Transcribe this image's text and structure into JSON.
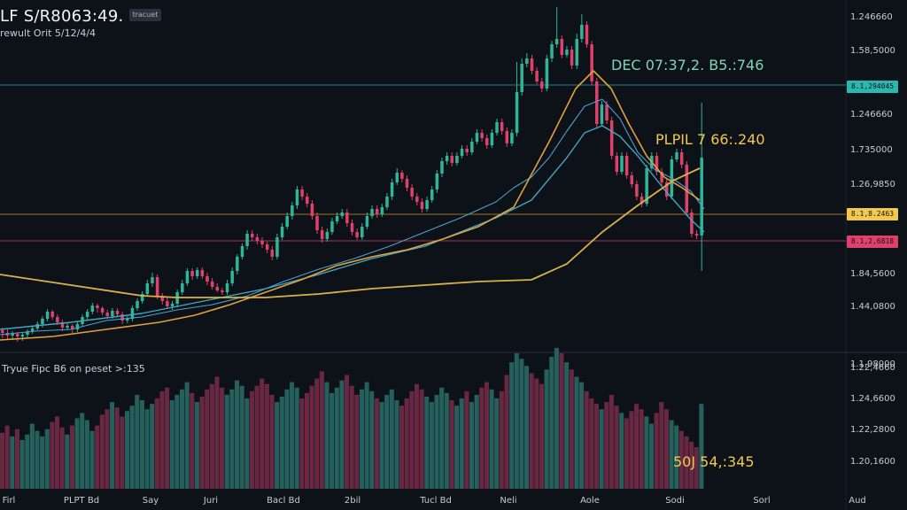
{
  "header": {
    "title": "LF S/R8063:49.",
    "subtitle": "rewult Orit 5/12/4/4",
    "badge": "tracuet"
  },
  "colors": {
    "background": "#0d1118",
    "bull": "#2fb59a",
    "bear": "#e0416b",
    "ma_fast": "#3fa7c4",
    "ma_mid": "#e0a23c",
    "ma_slow": "#d9b24a",
    "line_teal": "#29a59e",
    "line_orange": "#c58d2c",
    "line_pink": "#ca3b66"
  },
  "chart_data": {
    "type": "line",
    "title": "LF S/R8063:49.",
    "subtitle": "rewult Orit 5/12/4/4",
    "xlabel": "",
    "ylabel": "",
    "grid": false,
    "x_tick_labels": [
      "Firl",
      "PLPT Bd",
      "Say",
      "Juri",
      "Bacl Bd",
      "2bil",
      "Tucl Bd",
      "Neli",
      "Aole",
      "Sodi",
      "Sorl",
      "Aud"
    ],
    "price_axis_labels": [
      "1.246660",
      "1.58,5000",
      "1.246660",
      "1.735000",
      "1.26,9850",
      "1.84,5600",
      "1.44,0800",
      "1.1,98000"
    ],
    "volume_axis_labels": [
      "1.22,4660",
      "1.24,6600",
      "1.22,2800",
      "1.20,1600"
    ],
    "price_tags": [
      {
        "label": "8.1,294045",
        "color": "#2ab7b0"
      },
      {
        "label": "8.1,8.2463",
        "color": "#f2c94c"
      },
      {
        "label": "8.1,2,6818",
        "color": "#e0416b"
      }
    ],
    "annotations": [
      {
        "text": "DEC 07:37,2. B5.:746",
        "color": "#7fd6b5"
      },
      {
        "text": "PLPIL 7 66:.240",
        "color": "#f2c94c"
      },
      {
        "text": "50J 54,:345",
        "color": "#f2c94c"
      }
    ],
    "volume_label": "Tryue Fipc B6 on peset >:135",
    "candles": [
      [
        373,
        376,
        370,
        382
      ],
      [
        376,
        379,
        372,
        383
      ],
      [
        379,
        377,
        374,
        384
      ],
      [
        377,
        380,
        375,
        386
      ],
      [
        380,
        378,
        376,
        385
      ],
      [
        378,
        374,
        372,
        381
      ],
      [
        374,
        371,
        369,
        377
      ],
      [
        371,
        366,
        363,
        373
      ],
      [
        366,
        360,
        357,
        370
      ],
      [
        360,
        352,
        349,
        363
      ],
      [
        352,
        358,
        350,
        361
      ],
      [
        358,
        364,
        355,
        367
      ],
      [
        364,
        370,
        361,
        374
      ],
      [
        370,
        368,
        365,
        373
      ],
      [
        368,
        372,
        366,
        376
      ],
      [
        372,
        366,
        363,
        375
      ],
      [
        366,
        358,
        355,
        369
      ],
      [
        358,
        352,
        349,
        361
      ],
      [
        352,
        345,
        342,
        355
      ],
      [
        345,
        348,
        343,
        353
      ],
      [
        348,
        353,
        346,
        356
      ],
      [
        353,
        357,
        350,
        360
      ],
      [
        357,
        351,
        348,
        360
      ],
      [
        351,
        355,
        348,
        358
      ],
      [
        355,
        362,
        352,
        366
      ],
      [
        362,
        360,
        357,
        365
      ],
      [
        360,
        348,
        345,
        363
      ],
      [
        348,
        340,
        337,
        351
      ],
      [
        340,
        332,
        329,
        343
      ],
      [
        332,
        320,
        316,
        335
      ],
      [
        320,
        313,
        308,
        324
      ],
      [
        313,
        334,
        310,
        338
      ],
      [
        334,
        340,
        331,
        344
      ],
      [
        340,
        346,
        336,
        349
      ],
      [
        346,
        343,
        340,
        350
      ],
      [
        343,
        330,
        327,
        347
      ],
      [
        330,
        320,
        316,
        333
      ],
      [
        320,
        306,
        303,
        323
      ],
      [
        306,
        312,
        303,
        316
      ],
      [
        312,
        305,
        302,
        315
      ],
      [
        305,
        312,
        302,
        315
      ],
      [
        312,
        318,
        308,
        322
      ],
      [
        318,
        324,
        314,
        327
      ],
      [
        324,
        328,
        320,
        330
      ],
      [
        328,
        330,
        325,
        333
      ],
      [
        330,
        320,
        316,
        333
      ],
      [
        320,
        306,
        302,
        323
      ],
      [
        306,
        290,
        287,
        310
      ],
      [
        290,
        278,
        275,
        293
      ],
      [
        278,
        264,
        260,
        282
      ],
      [
        264,
        268,
        260,
        272
      ],
      [
        268,
        272,
        264,
        276
      ],
      [
        272,
        276,
        268,
        280
      ],
      [
        276,
        282,
        273,
        286
      ],
      [
        282,
        290,
        278,
        294
      ],
      [
        290,
        268,
        264,
        293
      ],
      [
        268,
        256,
        252,
        271
      ],
      [
        256,
        244,
        240,
        259
      ],
      [
        244,
        232,
        228,
        248
      ],
      [
        232,
        214,
        210,
        236
      ],
      [
        214,
        222,
        210,
        226
      ],
      [
        222,
        230,
        218,
        234
      ],
      [
        230,
        244,
        226,
        248
      ],
      [
        244,
        260,
        240,
        264
      ],
      [
        260,
        270,
        256,
        274
      ],
      [
        270,
        262,
        258,
        273
      ],
      [
        262,
        250,
        246,
        265
      ],
      [
        250,
        244,
        240,
        253
      ],
      [
        244,
        240,
        236,
        247
      ],
      [
        240,
        252,
        236,
        256
      ],
      [
        252,
        262,
        248,
        266
      ],
      [
        262,
        268,
        258,
        271
      ],
      [
        268,
        256,
        252,
        271
      ],
      [
        256,
        244,
        240,
        259
      ],
      [
        244,
        236,
        232,
        247
      ],
      [
        236,
        242,
        232,
        246
      ],
      [
        242,
        234,
        230,
        245
      ],
      [
        234,
        222,
        218,
        237
      ],
      [
        222,
        206,
        202,
        226
      ],
      [
        206,
        195,
        190,
        209
      ],
      [
        195,
        202,
        192,
        206
      ],
      [
        202,
        212,
        198,
        216
      ],
      [
        212,
        222,
        208,
        226
      ],
      [
        222,
        228,
        218,
        232
      ],
      [
        228,
        236,
        224,
        240
      ],
      [
        236,
        226,
        222,
        239
      ],
      [
        226,
        214,
        210,
        229
      ],
      [
        214,
        196,
        192,
        218
      ],
      [
        196,
        182,
        178,
        200
      ],
      [
        182,
        176,
        172,
        186
      ],
      [
        176,
        184,
        172,
        188
      ],
      [
        184,
        176,
        172,
        187
      ],
      [
        176,
        168,
        164,
        179
      ],
      [
        168,
        172,
        164,
        176
      ],
      [
        172,
        160,
        156,
        175
      ],
      [
        160,
        150,
        146,
        163
      ],
      [
        150,
        156,
        146,
        160
      ],
      [
        156,
        164,
        152,
        168
      ],
      [
        164,
        150,
        146,
        167
      ],
      [
        150,
        138,
        134,
        153
      ],
      [
        138,
        148,
        134,
        152
      ],
      [
        148,
        162,
        144,
        166
      ],
      [
        162,
        150,
        146,
        165
      ],
      [
        150,
        104,
        70,
        154
      ],
      [
        104,
        72,
        66,
        108
      ],
      [
        72,
        66,
        60,
        76
      ],
      [
        66,
        80,
        62,
        84
      ],
      [
        80,
        92,
        76,
        95
      ],
      [
        92,
        100,
        88,
        104
      ],
      [
        100,
        66,
        62,
        103
      ],
      [
        66,
        50,
        46,
        70
      ],
      [
        50,
        44,
        8,
        54
      ],
      [
        44,
        62,
        40,
        66
      ],
      [
        62,
        56,
        52,
        65
      ],
      [
        56,
        74,
        52,
        78
      ],
      [
        74,
        44,
        38,
        78
      ],
      [
        44,
        28,
        16,
        48
      ],
      [
        28,
        50,
        24,
        54
      ],
      [
        50,
        92,
        46,
        96
      ],
      [
        92,
        140,
        88,
        144
      ],
      [
        140,
        118,
        114,
        143
      ],
      [
        118,
        136,
        114,
        140
      ],
      [
        136,
        176,
        132,
        180
      ],
      [
        176,
        194,
        172,
        198
      ],
      [
        194,
        176,
        172,
        197
      ],
      [
        176,
        198,
        172,
        202
      ],
      [
        198,
        208,
        194,
        212
      ],
      [
        208,
        222,
        204,
        226
      ],
      [
        222,
        230,
        218,
        234
      ],
      [
        230,
        190,
        186,
        233
      ],
      [
        190,
        176,
        172,
        193
      ],
      [
        176,
        194,
        172,
        198
      ],
      [
        194,
        206,
        190,
        210
      ],
      [
        206,
        222,
        202,
        226
      ],
      [
        222,
        180,
        176,
        225
      ],
      [
        180,
        172,
        168,
        183
      ],
      [
        172,
        186,
        168,
        190
      ],
      [
        186,
        240,
        182,
        244
      ],
      [
        240,
        264,
        236,
        268
      ],
      [
        264,
        266,
        260,
        270
      ],
      [
        266,
        178,
        116,
        306
      ]
    ],
    "volumes": [
      62,
      70,
      58,
      66,
      54,
      60,
      72,
      64,
      58,
      66,
      74,
      80,
      68,
      60,
      70,
      78,
      84,
      76,
      64,
      70,
      82,
      88,
      96,
      90,
      80,
      86,
      92,
      104,
      98,
      88,
      94,
      100,
      108,
      112,
      98,
      104,
      110,
      118,
      106,
      96,
      102,
      110,
      116,
      124,
      112,
      104,
      110,
      120,
      114,
      100,
      108,
      114,
      122,
      116,
      104,
      96,
      102,
      110,
      118,
      112,
      100,
      106,
      114,
      122,
      130,
      118,
      106,
      112,
      120,
      126,
      114,
      104,
      110,
      118,
      108,
      100,
      96,
      104,
      110,
      98,
      92,
      100,
      108,
      116,
      110,
      102,
      96,
      104,
      112,
      106,
      98,
      92,
      100,
      108,
      96,
      104,
      112,
      118,
      110,
      100,
      108,
      126,
      140,
      150,
      144,
      136,
      128,
      122,
      116,
      132,
      146,
      156,
      150,
      140,
      132,
      124,
      118,
      108,
      100,
      94,
      88,
      96,
      104,
      92,
      84,
      78,
      86,
      94,
      88,
      80,
      72,
      84,
      96,
      88,
      76,
      70,
      64,
      58,
      52,
      46,
      94
    ],
    "ma_fast": [
      [
        0,
        378
      ],
      [
        40,
        374
      ],
      [
        80,
        372
      ],
      [
        120,
        362
      ],
      [
        160,
        358
      ],
      [
        200,
        350
      ],
      [
        240,
        344
      ],
      [
        280,
        334
      ],
      [
        320,
        318
      ],
      [
        360,
        304
      ],
      [
        400,
        292
      ],
      [
        440,
        278
      ],
      [
        480,
        262
      ],
      [
        520,
        246
      ],
      [
        560,
        228
      ],
      [
        580,
        212
      ],
      [
        600,
        200
      ],
      [
        620,
        178
      ],
      [
        640,
        148
      ],
      [
        660,
        120
      ],
      [
        680,
        112
      ],
      [
        700,
        134
      ],
      [
        720,
        172
      ],
      [
        740,
        192
      ],
      [
        760,
        202
      ],
      [
        780,
        216
      ],
      [
        795,
        236
      ]
    ],
    "ma_mid": [
      [
        0,
        384
      ],
      [
        60,
        380
      ],
      [
        120,
        372
      ],
      [
        180,
        364
      ],
      [
        220,
        356
      ],
      [
        260,
        344
      ],
      [
        300,
        330
      ],
      [
        340,
        316
      ],
      [
        380,
        300
      ],
      [
        420,
        290
      ],
      [
        460,
        282
      ],
      [
        500,
        270
      ],
      [
        540,
        256
      ],
      [
        580,
        234
      ],
      [
        620,
        160
      ],
      [
        650,
        100
      ],
      [
        670,
        80
      ],
      [
        690,
        100
      ],
      [
        710,
        140
      ],
      [
        730,
        176
      ],
      [
        750,
        200
      ],
      [
        770,
        212
      ],
      [
        790,
        226
      ]
    ],
    "ma_slow": [
      [
        0,
        310
      ],
      [
        80,
        322
      ],
      [
        160,
        334
      ],
      [
        200,
        336
      ],
      [
        240,
        336
      ],
      [
        300,
        336
      ],
      [
        360,
        332
      ],
      [
        420,
        326
      ],
      [
        480,
        322
      ],
      [
        540,
        318
      ],
      [
        600,
        316
      ],
      [
        640,
        298
      ],
      [
        680,
        262
      ],
      [
        720,
        232
      ],
      [
        760,
        204
      ],
      [
        790,
        190
      ]
    ],
    "ma_teal_long": [
      [
        0,
        372
      ],
      [
        80,
        364
      ],
      [
        160,
        354
      ],
      [
        240,
        338
      ],
      [
        300,
        326
      ],
      [
        360,
        310
      ],
      [
        420,
        292
      ],
      [
        480,
        278
      ],
      [
        520,
        262
      ],
      [
        560,
        246
      ],
      [
        600,
        226
      ],
      [
        640,
        178
      ],
      [
        660,
        150
      ],
      [
        680,
        142
      ],
      [
        700,
        154
      ],
      [
        720,
        176
      ],
      [
        750,
        214
      ],
      [
        780,
        248
      ],
      [
        795,
        262
      ]
    ]
  }
}
